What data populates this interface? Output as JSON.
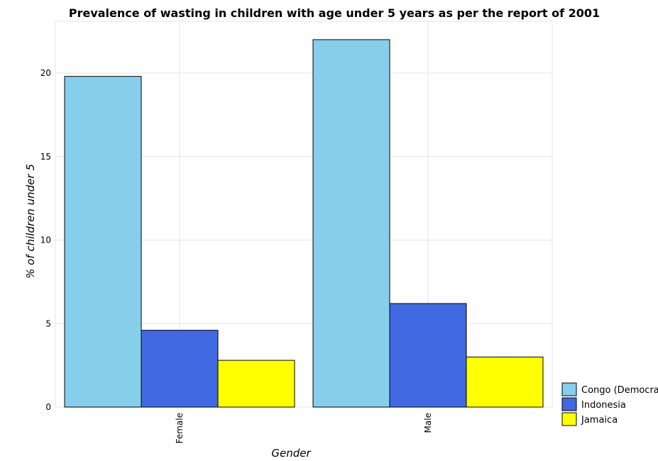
{
  "chart_data": {
    "type": "bar",
    "title": "Prevalence of wasting in children with age under 5 years as per the report of 2001",
    "xlabel": "Gender",
    "ylabel": "% of children under 5",
    "categories": [
      "Female",
      "Male"
    ],
    "series": [
      {
        "name": "Congo (Democratic)",
        "values": [
          19.8,
          22.0
        ],
        "color": "#87CEEB"
      },
      {
        "name": "Indonesia",
        "values": [
          4.6,
          6.2
        ],
        "color": "#4169E1"
      },
      {
        "name": "Jamaica",
        "values": [
          2.8,
          3.0
        ],
        "color": "#FFFF00"
      }
    ],
    "ylim": [
      0,
      23.1
    ],
    "yticks": [
      0,
      5,
      10,
      15,
      20
    ],
    "grid": true,
    "legend_position": "bottom-right"
  }
}
